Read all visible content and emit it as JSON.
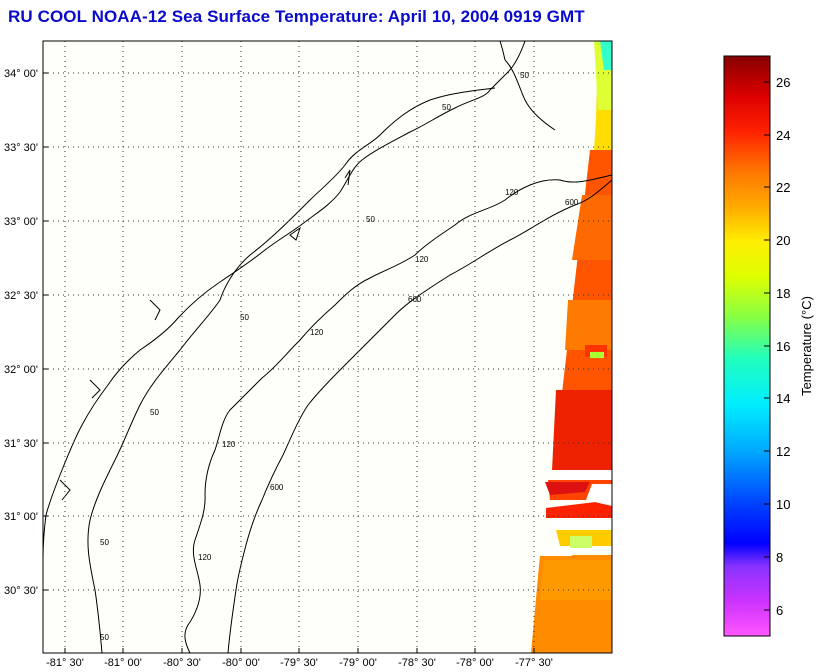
{
  "title": "RU COOL  NOAA-12  Sea Surface Temperature:  April 10, 2004 0919 GMT",
  "map": {
    "lon_ticks": [
      "-81° 30'",
      "-81° 00'",
      "-80° 30'",
      "-80° 00'",
      "-79° 30'",
      "-79° 00'",
      "-78° 30'",
      "-78° 00'",
      "-77° 30'"
    ],
    "lat_ticks": [
      "34° 00'",
      "33° 30'",
      "33° 00'",
      "32° 30'",
      "32° 00'",
      "31° 30'",
      "31° 00'",
      "30° 30'"
    ],
    "isobath_labels": [
      "50",
      "50",
      "120",
      "600",
      "50",
      "120",
      "600",
      "50",
      "120",
      "50",
      "600",
      "50",
      "120",
      "120",
      "50"
    ],
    "grid": true,
    "coastline_color": "#000000"
  },
  "colorbar": {
    "label": "Temperature (°C)",
    "ticks": [
      "26",
      "24",
      "22",
      "20",
      "18",
      "16",
      "14",
      "12",
      "10",
      "8",
      "6"
    ],
    "range": [
      5,
      27
    ]
  }
}
